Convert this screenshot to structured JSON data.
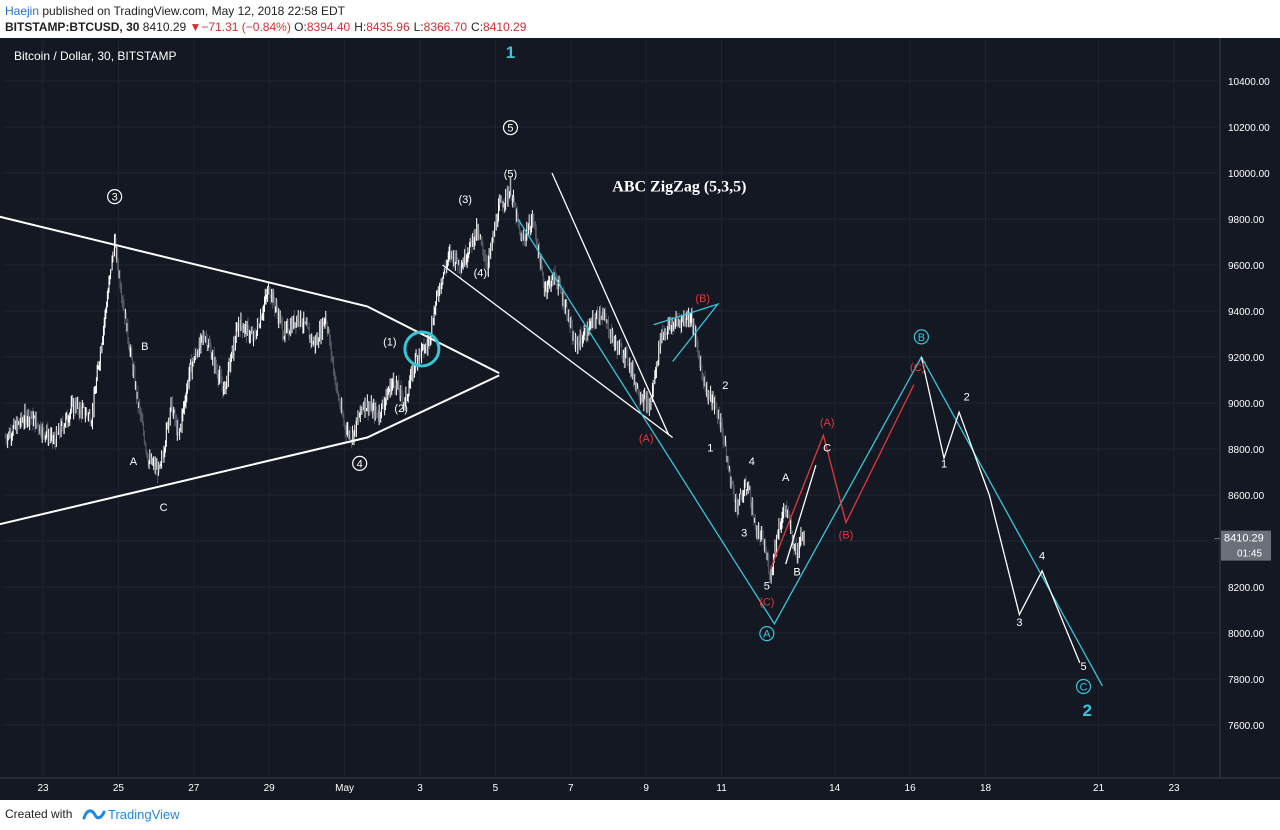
{
  "header": {
    "author": "Haejin",
    "published_text": "published on TradingView.com, May 12, 2018 22:58 EDT",
    "symbol": "BITSTAMP:BTCUSD, 30",
    "last": "8410.29",
    "change": "−71.31 (−0.84%)",
    "ohlc": [
      {
        "k": "O:",
        "v": "8394.40"
      },
      {
        "k": "H:",
        "v": "8435.96"
      },
      {
        "k": "L:",
        "v": "8366.70"
      },
      {
        "k": "C:",
        "v": "8410.29"
      }
    ]
  },
  "footer": {
    "created_with": "Created with",
    "brand": "TradingView"
  },
  "colors": {
    "background": "#141823",
    "text": "#ffffff",
    "cyan": "#35c6d8",
    "red": "#e0393b",
    "up_candle": "#ffffff",
    "down_candle": "#555a66"
  },
  "chart_data": {
    "type": "candlestick",
    "title": "Bitcoin / Dollar, 30, BITSTAMP",
    "ylim": [
      7400,
      10600
    ],
    "y_ticks": [
      "7600.00",
      "7800.00",
      "8000.00",
      "8200.00",
      "8400.00",
      "8600.00",
      "8800.00",
      "9000.00",
      "9200.00",
      "9400.00",
      "9600.00",
      "9800.00",
      "10000.00",
      "10200.00",
      "10400.00"
    ],
    "x_ticks": [
      {
        "label": "23",
        "d": 23
      },
      {
        "label": "25",
        "d": 25
      },
      {
        "label": "27",
        "d": 27
      },
      {
        "label": "29",
        "d": 29
      },
      {
        "label": "May",
        "d": 31
      },
      {
        "label": "3",
        "d": 33
      },
      {
        "label": "5",
        "d": 35
      },
      {
        "label": "7",
        "d": 37
      },
      {
        "label": "9",
        "d": 39
      },
      {
        "label": "11",
        "d": 41
      },
      {
        "label": "14",
        "d": 44
      },
      {
        "label": "16",
        "d": 46
      },
      {
        "label": "18",
        "d": 48
      },
      {
        "label": "21",
        "d": 51
      },
      {
        "label": "23",
        "d": 53
      }
    ],
    "price_label": "8410.29",
    "countdown_label": "01:45",
    "last_price": 8410.29,
    "price_path": [
      [
        22.0,
        8850
      ],
      [
        22.6,
        8950
      ],
      [
        23.3,
        8830
      ],
      [
        23.8,
        8990
      ],
      [
        24.3,
        8940
      ],
      [
        24.5,
        9200
      ],
      [
        24.9,
        9700
      ],
      [
        25.2,
        9350
      ],
      [
        25.5,
        9020
      ],
      [
        25.8,
        8750
      ],
      [
        26.1,
        8700
      ],
      [
        26.4,
        9000
      ],
      [
        26.6,
        8850
      ],
      [
        26.9,
        9150
      ],
      [
        27.3,
        9300
      ],
      [
        27.8,
        9050
      ],
      [
        28.2,
        9350
      ],
      [
        28.6,
        9280
      ],
      [
        29.0,
        9500
      ],
      [
        29.4,
        9300
      ],
      [
        29.8,
        9380
      ],
      [
        30.2,
        9250
      ],
      [
        30.5,
        9380
      ],
      [
        30.8,
        9050
      ],
      [
        31.0,
        8900
      ],
      [
        31.2,
        8850
      ],
      [
        31.5,
        9000
      ],
      [
        31.9,
        8950
      ],
      [
        32.3,
        9100
      ],
      [
        32.6,
        9000
      ],
      [
        32.9,
        9200
      ],
      [
        33.2,
        9250
      ],
      [
        33.5,
        9500
      ],
      [
        33.8,
        9650
      ],
      [
        34.1,
        9600
      ],
      [
        34.5,
        9750
      ],
      [
        34.8,
        9600
      ],
      [
        35.1,
        9850
      ],
      [
        35.4,
        9930
      ],
      [
        35.7,
        9700
      ],
      [
        36.0,
        9800
      ],
      [
        36.3,
        9500
      ],
      [
        36.6,
        9550
      ],
      [
        36.9,
        9400
      ],
      [
        37.1,
        9250
      ],
      [
        37.4,
        9300
      ],
      [
        37.8,
        9400
      ],
      [
        38.2,
        9250
      ],
      [
        38.5,
        9200
      ],
      [
        38.8,
        9050
      ],
      [
        39.1,
        8980
      ],
      [
        39.4,
        9300
      ],
      [
        39.8,
        9350
      ],
      [
        40.2,
        9380
      ],
      [
        40.4,
        9200
      ],
      [
        40.6,
        9050
      ],
      [
        40.8,
        9000
      ],
      [
        41.0,
        8900
      ],
      [
        41.2,
        8700
      ],
      [
        41.4,
        8550
      ],
      [
        41.7,
        8650
      ],
      [
        41.9,
        8450
      ],
      [
        42.1,
        8400
      ],
      [
        42.3,
        8250
      ],
      [
        42.5,
        8450
      ],
      [
        42.7,
        8550
      ],
      [
        42.9,
        8400
      ],
      [
        43.0,
        8330
      ],
      [
        43.1,
        8450
      ],
      [
        43.2,
        8410
      ]
    ],
    "trendlines": [
      {
        "color": "white",
        "pts": [
          [
            21.6,
            9820
          ],
          [
            31.6,
            9420
          ],
          [
            35.1,
            9130
          ]
        ]
      },
      {
        "color": "white",
        "pts": [
          [
            21.0,
            8440
          ],
          [
            31.6,
            8850
          ],
          [
            35.1,
            9120
          ]
        ]
      },
      {
        "color": "white",
        "pts": [
          [
            33.6,
            9600
          ],
          [
            39.7,
            8850
          ]
        ]
      },
      {
        "color": "white",
        "pts": [
          [
            36.5,
            10000
          ],
          [
            39.6,
            8860
          ]
        ]
      },
      {
        "color": "cyan",
        "pts": [
          [
            35.6,
            9800
          ],
          [
            42.4,
            8040
          ],
          [
            46.3,
            9200
          ],
          [
            51.1,
            7770
          ]
        ]
      },
      {
        "color": "cyan",
        "pts": [
          [
            39.2,
            9340
          ],
          [
            40.9,
            9430
          ],
          [
            39.7,
            9180
          ]
        ]
      },
      {
        "color": "red",
        "pts": [
          [
            42.3,
            8280
          ],
          [
            43.7,
            8860
          ],
          [
            44.3,
            8480
          ],
          [
            46.1,
            9080
          ]
        ]
      },
      {
        "color": "white",
        "pts": [
          [
            42.7,
            8300
          ],
          [
            43.5,
            8730
          ]
        ]
      },
      {
        "color": "white",
        "pts": [
          [
            46.3,
            9200
          ],
          [
            46.9,
            8760
          ],
          [
            47.3,
            8960
          ],
          [
            48.1,
            8600
          ],
          [
            48.9,
            8080
          ],
          [
            49.5,
            8270
          ],
          [
            50.5,
            7870
          ]
        ]
      }
    ],
    "highlight_circle": {
      "d": 33.05,
      "p": 9235
    },
    "annotations": [
      {
        "text": "1",
        "d": 35.4,
        "p": 10500,
        "color": "cyan",
        "size": 17,
        "bold": true
      },
      {
        "text": "5",
        "d": 35.4,
        "p": 10180,
        "color": "white",
        "circled": true
      },
      {
        "text": "(5)",
        "d": 35.4,
        "p": 9980,
        "color": "white"
      },
      {
        "text": "ABC ZigZag (5,3,5)",
        "d": 38.1,
        "p": 9920,
        "color": "white",
        "size": 16,
        "bold": true,
        "serif": true
      },
      {
        "text": "3",
        "d": 24.9,
        "p": 9880,
        "color": "white",
        "circled": true
      },
      {
        "text": "(3)",
        "d": 34.2,
        "p": 9870,
        "color": "white"
      },
      {
        "text": "(4)",
        "d": 34.6,
        "p": 9550,
        "color": "white"
      },
      {
        "text": "(B)",
        "d": 40.5,
        "p": 9440,
        "color": "red"
      },
      {
        "text": "B",
        "d": 25.7,
        "p": 9230,
        "color": "white"
      },
      {
        "text": "(1)",
        "d": 32.2,
        "p": 9250,
        "color": "white"
      },
      {
        "text": "2",
        "d": 41.1,
        "p": 9060,
        "color": "white"
      },
      {
        "text": "(2)",
        "d": 32.5,
        "p": 8960,
        "color": "white"
      },
      {
        "text": "(A)",
        "d": 39.0,
        "p": 8830,
        "color": "red"
      },
      {
        "text": "(A)",
        "d": 43.8,
        "p": 8900,
        "color": "red"
      },
      {
        "text": "1",
        "d": 40.7,
        "p": 8790,
        "color": "white"
      },
      {
        "text": "C",
        "d": 43.8,
        "p": 8790,
        "color": "white"
      },
      {
        "text": "A",
        "d": 25.4,
        "p": 8730,
        "color": "white"
      },
      {
        "text": "4",
        "d": 41.8,
        "p": 8730,
        "color": "white"
      },
      {
        "text": "4",
        "d": 31.4,
        "p": 8720,
        "color": "white",
        "circled": true
      },
      {
        "text": "A",
        "d": 42.7,
        "p": 8660,
        "color": "white"
      },
      {
        "text": "C",
        "d": 26.2,
        "p": 8530,
        "color": "white"
      },
      {
        "text": "3",
        "d": 41.6,
        "p": 8420,
        "color": "white"
      },
      {
        "text": "(B)",
        "d": 44.3,
        "p": 8410,
        "color": "red"
      },
      {
        "text": "B",
        "d": 43.0,
        "p": 8250,
        "color": "white"
      },
      {
        "text": "5",
        "d": 42.2,
        "p": 8190,
        "color": "white"
      },
      {
        "text": "(C)",
        "d": 42.2,
        "p": 8120,
        "color": "red"
      },
      {
        "text": "A",
        "d": 42.2,
        "p": 7980,
        "color": "cyan",
        "circled": true
      },
      {
        "text": "B",
        "d": 46.3,
        "p": 9270,
        "color": "cyan",
        "circled": true
      },
      {
        "text": "(C)",
        "d": 46.2,
        "p": 9140,
        "color": "red"
      },
      {
        "text": "2",
        "d": 47.5,
        "p": 9010,
        "color": "white"
      },
      {
        "text": "1",
        "d": 46.9,
        "p": 8720,
        "color": "white"
      },
      {
        "text": "4",
        "d": 49.5,
        "p": 8320,
        "color": "white"
      },
      {
        "text": "3",
        "d": 48.9,
        "p": 8030,
        "color": "white"
      },
      {
        "text": "5",
        "d": 50.6,
        "p": 7840,
        "color": "white"
      },
      {
        "text": "C",
        "d": 50.6,
        "p": 7750,
        "color": "cyan",
        "circled": true
      },
      {
        "text": "2",
        "d": 50.7,
        "p": 7640,
        "color": "cyan",
        "size": 17,
        "bold": true
      }
    ]
  }
}
